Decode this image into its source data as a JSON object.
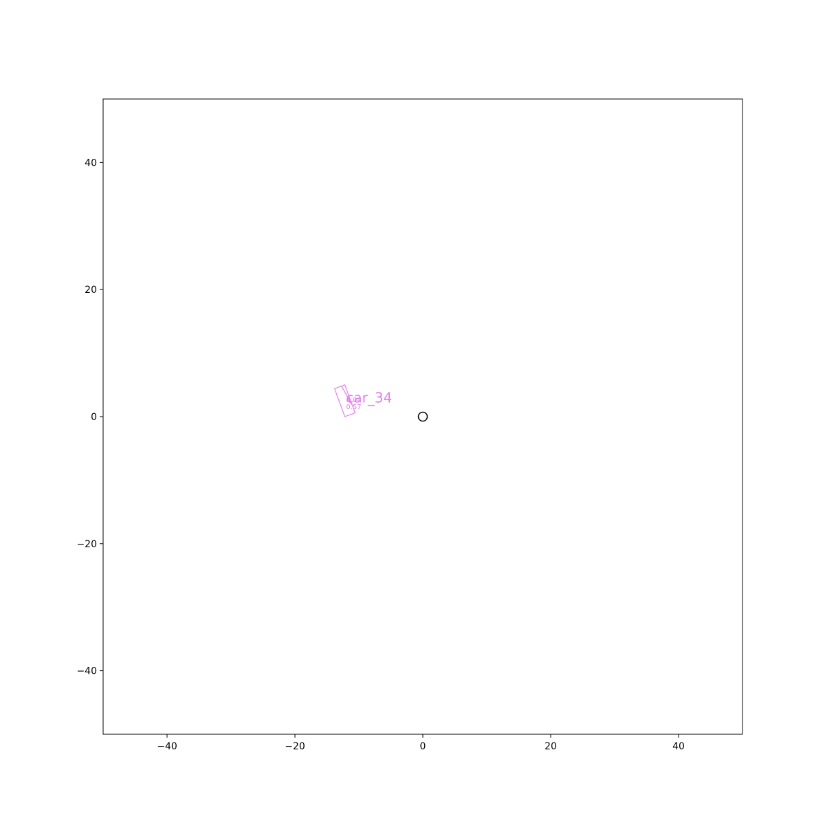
{
  "chart_data": {
    "type": "scatter",
    "title": "",
    "xlabel": "",
    "ylabel": "",
    "xlim": [
      -50,
      50
    ],
    "ylim": [
      -50,
      50
    ],
    "grid": false,
    "x_ticks": [
      -40,
      -20,
      0,
      20,
      40
    ],
    "y_ticks": [
      -40,
      -20,
      0,
      20,
      40
    ],
    "x_tick_labels": [
      "−40",
      "−20",
      "0",
      "20",
      "40"
    ],
    "y_tick_labels": [
      "−40",
      "−20",
      "0",
      "20",
      "40"
    ],
    "ego": {
      "x": 0,
      "y": 0,
      "marker": "circle",
      "color": "#000000"
    },
    "objects": [
      {
        "name": "car_34",
        "color": "#e47ef0",
        "corners": [
          [
            -12.2,
            0.0
          ],
          [
            -10.6,
            0.6
          ],
          [
            -12.2,
            5.0
          ],
          [
            -13.8,
            4.4
          ]
        ],
        "divider": [
          [
            -11.1,
            1.9
          ],
          [
            -12.7,
            4.8
          ]
        ],
        "label_anchor": [
          -12.0,
          2.2
        ],
        "sublabels": [
          "0.04",
          "0.57"
        ],
        "sublabel_anchors": [
          [
            -12.0,
            2.7
          ],
          [
            -12.0,
            1.6
          ]
        ]
      }
    ]
  }
}
